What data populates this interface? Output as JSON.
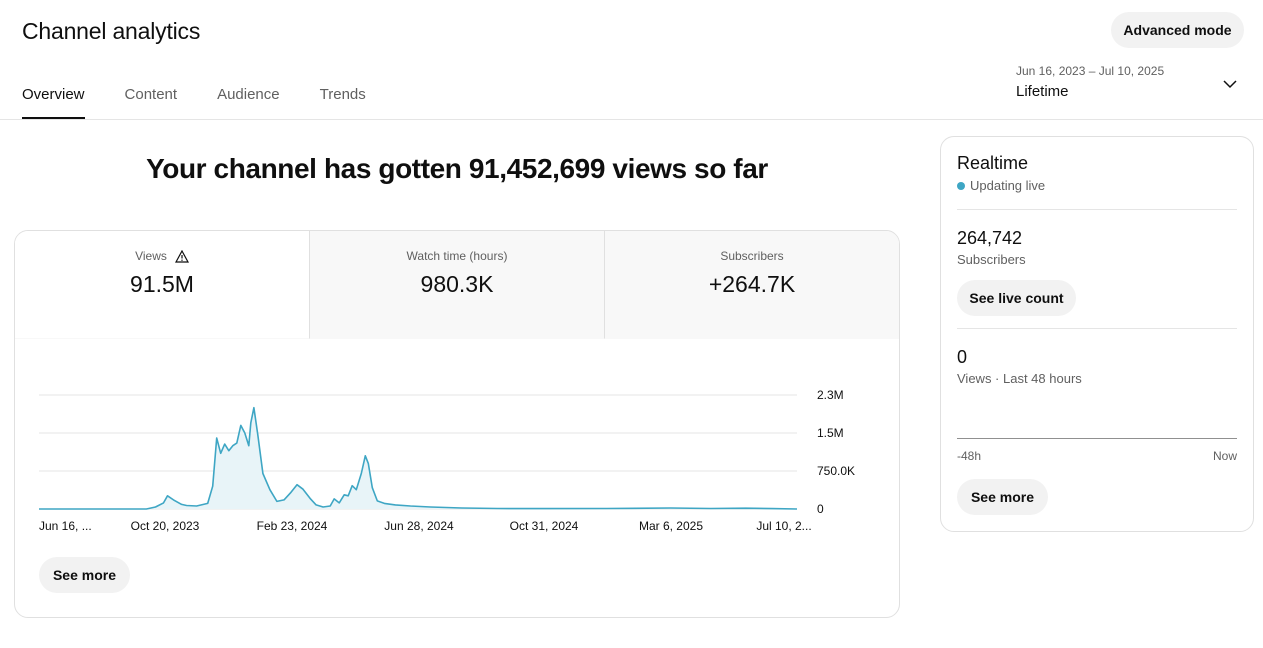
{
  "header": {
    "title": "Channel analytics",
    "advanced_label": "Advanced mode",
    "tabs": [
      {
        "label": "Overview",
        "active": true
      },
      {
        "label": "Content",
        "active": false
      },
      {
        "label": "Audience",
        "active": false
      },
      {
        "label": "Trends",
        "active": false
      }
    ],
    "date_range": "Jun 16, 2023 – Jul 10, 2025",
    "period": "Lifetime",
    "chevron_icon": "chevron-down-icon"
  },
  "headline": "Your channel has gotten 91,452,699 views so far",
  "metrics": [
    {
      "label": "Views",
      "value": "91.5M",
      "icon": "warning-icon",
      "selected": true
    },
    {
      "label": "Watch time (hours)",
      "value": "980.3K",
      "selected": false
    },
    {
      "label": "Subscribers",
      "value": "+264.7K",
      "selected": false
    }
  ],
  "card": {
    "see_more": "See more"
  },
  "colors": {
    "line": "#3ea6c4",
    "fill": "#e8f4f8",
    "grid": "#e5e5e5",
    "accent_dot": "#3ea6c4"
  },
  "chart_data": {
    "type": "area",
    "series": [
      {
        "values_note_free": true
      }
    ],
    "x_ticks": [
      "Jun 16, ...",
      "Oct 20, 2023",
      "Feb 23, 2024",
      "Jun 28, 2024",
      "Oct 31, 2024",
      "Mar 6, 2025",
      "Jul 10, 2..."
    ],
    "y_ticks": [
      "0",
      "750.0K",
      "1.5M",
      "2.3M"
    ],
    "y_tick_values": [
      0,
      750000,
      1500000,
      2250000
    ],
    "ylim": [
      0,
      2250000
    ],
    "x_start": "2023-06-16",
    "x_end": "2025-07-10",
    "points": [
      [
        "2023-06-16",
        0
      ],
      [
        "2023-08-15",
        0
      ],
      [
        "2023-10-01",
        0
      ],
      [
        "2023-10-10",
        40000
      ],
      [
        "2023-10-18",
        120000
      ],
      [
        "2023-10-22",
        260000
      ],
      [
        "2023-10-28",
        180000
      ],
      [
        "2023-11-05",
        90000
      ],
      [
        "2023-11-10",
        70000
      ],
      [
        "2023-11-20",
        60000
      ],
      [
        "2023-12-01",
        110000
      ],
      [
        "2023-12-06",
        450000
      ],
      [
        "2023-12-10",
        1400000
      ],
      [
        "2023-12-14",
        1100000
      ],
      [
        "2023-12-18",
        1280000
      ],
      [
        "2023-12-22",
        1150000
      ],
      [
        "2023-12-26",
        1250000
      ],
      [
        "2023-12-30",
        1300000
      ],
      [
        "2024-01-03",
        1650000
      ],
      [
        "2024-01-07",
        1500000
      ],
      [
        "2024-01-11",
        1250000
      ],
      [
        "2024-01-13",
        1700000
      ],
      [
        "2024-01-16",
        2000000
      ],
      [
        "2024-01-20",
        1450000
      ],
      [
        "2024-01-25",
        700000
      ],
      [
        "2024-02-01",
        380000
      ],
      [
        "2024-02-08",
        150000
      ],
      [
        "2024-02-15",
        180000
      ],
      [
        "2024-02-22",
        330000
      ],
      [
        "2024-02-28",
        480000
      ],
      [
        "2024-03-05",
        390000
      ],
      [
        "2024-03-12",
        210000
      ],
      [
        "2024-03-18",
        80000
      ],
      [
        "2024-03-25",
        40000
      ],
      [
        "2024-04-01",
        60000
      ],
      [
        "2024-04-05",
        200000
      ],
      [
        "2024-04-10",
        120000
      ],
      [
        "2024-04-15",
        280000
      ],
      [
        "2024-04-19",
        260000
      ],
      [
        "2024-04-23",
        460000
      ],
      [
        "2024-04-27",
        380000
      ],
      [
        "2024-05-02",
        700000
      ],
      [
        "2024-05-06",
        1050000
      ],
      [
        "2024-05-09",
        900000
      ],
      [
        "2024-05-13",
        420000
      ],
      [
        "2024-05-18",
        160000
      ],
      [
        "2024-05-25",
        110000
      ],
      [
        "2024-06-05",
        80000
      ],
      [
        "2024-06-20",
        60000
      ],
      [
        "2024-07-10",
        40000
      ],
      [
        "2024-08-10",
        20000
      ],
      [
        "2024-09-15",
        10000
      ],
      [
        "2024-11-01",
        8000
      ],
      [
        "2025-01-01",
        10000
      ],
      [
        "2025-03-06",
        20000
      ],
      [
        "2025-04-15",
        10000
      ],
      [
        "2025-05-20",
        15000
      ],
      [
        "2025-06-15",
        8000
      ],
      [
        "2025-07-10",
        0
      ]
    ]
  },
  "realtime": {
    "title": "Realtime",
    "live_label": "Updating live",
    "subscribers_value": "264,742",
    "subscribers_label": "Subscribers",
    "live_count_label": "See live count",
    "views_value": "0",
    "views_label": "Views · Last 48 hours",
    "axis_start": "-48h",
    "axis_end": "Now",
    "see_more": "See more"
  }
}
